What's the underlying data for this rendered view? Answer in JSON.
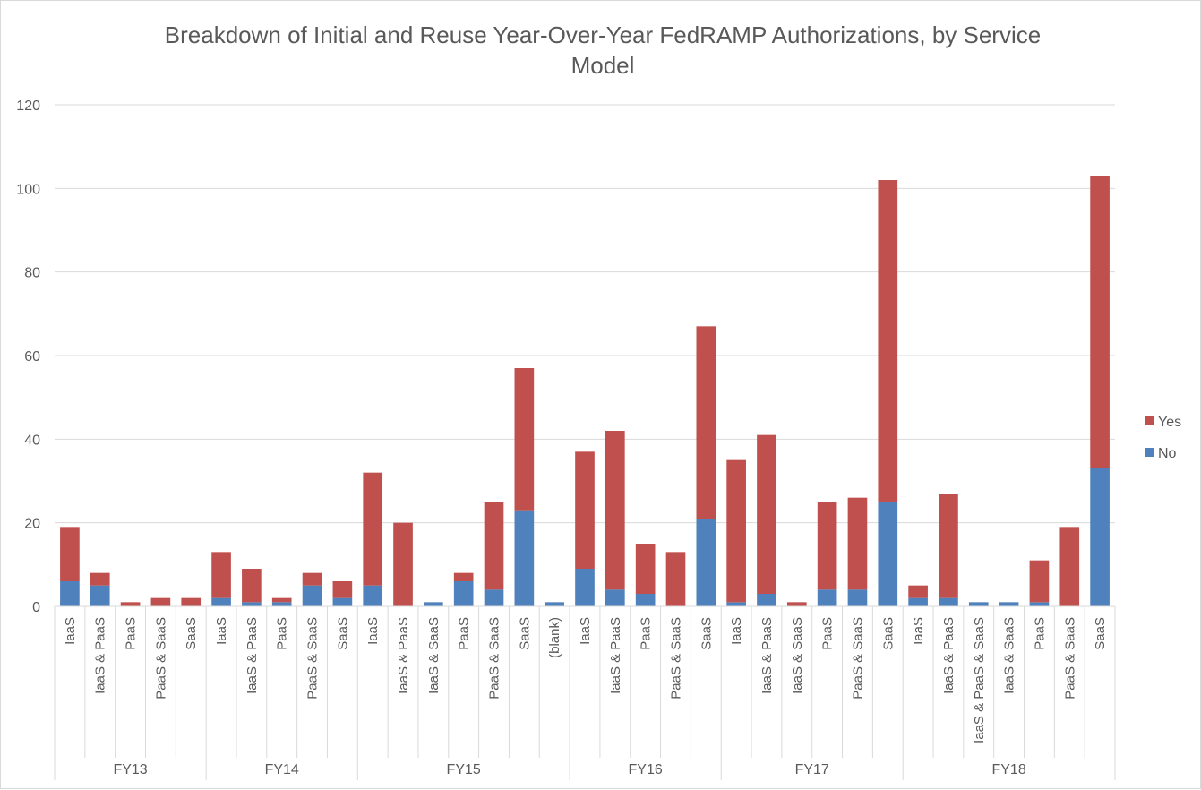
{
  "chart_data": {
    "type": "bar",
    "stacked": true,
    "title": "Breakdown of Initial and Reuse Year-Over-Year FedRAMP Authorizations, by Service Model",
    "title_lines": [
      "Breakdown of Initial and Reuse Year-Over-Year FedRAMP Authorizations, by Service",
      "Model"
    ],
    "ylim": [
      0,
      120
    ],
    "yticks": [
      0,
      20,
      40,
      60,
      80,
      100,
      120
    ],
    "grid": true,
    "legend": "right",
    "groups": [
      {
        "name": "FY13",
        "categories": [
          "IaaS",
          "IaaS & PaaS",
          "PaaS",
          "PaaS & SaaS",
          "SaaS"
        ]
      },
      {
        "name": "FY14",
        "categories": [
          "IaaS",
          "IaaS & PaaS",
          "PaaS",
          "PaaS & SaaS",
          "SaaS"
        ]
      },
      {
        "name": "FY15",
        "categories": [
          "IaaS",
          "IaaS & PaaS",
          "IaaS & SaaS",
          "PaaS",
          "PaaS & SaaS",
          "SaaS",
          "(blank)"
        ]
      },
      {
        "name": "FY16",
        "categories": [
          "IaaS",
          "IaaS & PaaS",
          "PaaS",
          "PaaS & SaaS",
          "SaaS"
        ]
      },
      {
        "name": "FY17",
        "categories": [
          "IaaS",
          "IaaS & PaaS",
          "IaaS & SaaS",
          "PaaS",
          "PaaS & SaaS",
          "SaaS"
        ]
      },
      {
        "name": "FY18",
        "categories": [
          "IaaS",
          "IaaS & PaaS",
          "IaaS & PaaS & SaaS",
          "IaaS & SaaS",
          "PaaS",
          "PaaS & SaaS",
          "SaaS"
        ]
      }
    ],
    "series": [
      {
        "name": "No",
        "color": "#4f81bd",
        "values": [
          6,
          5,
          0,
          0,
          0,
          2,
          1,
          1,
          5,
          2,
          5,
          0,
          1,
          6,
          4,
          23,
          1,
          9,
          4,
          3,
          0,
          21,
          1,
          3,
          0,
          4,
          4,
          25,
          2,
          2,
          1,
          1,
          1,
          0,
          33
        ]
      },
      {
        "name": "Yes",
        "color": "#c0504d",
        "values": [
          13,
          3,
          1,
          2,
          2,
          11,
          8,
          1,
          3,
          4,
          27,
          20,
          0,
          2,
          21,
          34,
          0,
          28,
          38,
          12,
          13,
          46,
          34,
          38,
          1,
          21,
          22,
          77,
          3,
          25,
          0,
          0,
          10,
          19,
          70
        ]
      }
    ]
  }
}
